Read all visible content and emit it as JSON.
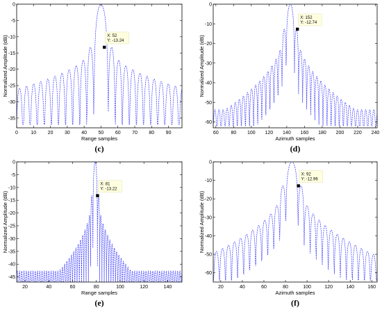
{
  "chart_data": [
    {
      "type": "line",
      "caption": "(c)",
      "xlabel": "Range samples",
      "ylabel": "Normalized Amplitude (dB)",
      "xlim": [
        0,
        98
      ],
      "ylim": [
        -38,
        0
      ],
      "xticks": [
        0,
        10,
        20,
        30,
        40,
        50,
        60,
        70,
        80,
        90
      ],
      "yticks": [
        0,
        -5,
        -10,
        -15,
        -20,
        -25,
        -30,
        -35
      ],
      "peak_x": 50,
      "lobe_period": 4.2,
      "sidelobe_peak_db": -13.24,
      "far_sidelobe_db": -27,
      "null_floor_db": -37,
      "grid": false,
      "color": "#3b3bff",
      "datatip": {
        "x": 52,
        "y": -13.24,
        "label_x": "X: 52",
        "label_y": "Y: -13.24"
      }
    },
    {
      "type": "line",
      "caption": "(d)",
      "xlabel": "Azimuth samples",
      "ylabel": "Normalized Amplitude (dB)",
      "xlim": [
        57,
        242
      ],
      "ylim": [
        -63,
        0
      ],
      "xticks": [
        60,
        80,
        100,
        120,
        140,
        160,
        180,
        200,
        220,
        240
      ],
      "yticks": [
        0,
        -10,
        -20,
        -30,
        -40,
        -50,
        -60
      ],
      "peak_x": 144,
      "lobe_period": 4.6,
      "sidelobe_peak_db": -12.74,
      "far_sidelobe_db": -50,
      "null_floor_db": -62,
      "grid": false,
      "color": "#3b3bff",
      "datatip": {
        "x": 152,
        "y": -12.74,
        "label_x": "X: 152",
        "label_y": "Y: -12.74"
      }
    },
    {
      "type": "line",
      "caption": "(e)",
      "xlabel": "Range samples",
      "ylabel": "Normalized Amplitude (dB)",
      "xlim": [
        13,
        152
      ],
      "ylim": [
        -47,
        0
      ],
      "xticks": [
        20,
        40,
        60,
        80,
        100,
        120,
        140
      ],
      "yticks": [
        0,
        -5,
        -10,
        -15,
        -20,
        -25,
        -30,
        -35,
        -40,
        -45
      ],
      "peak_x": 79,
      "lobe_period": 1.9,
      "sidelobe_peak_db": -13.22,
      "far_sidelobe_db": -40,
      "null_floor_db": -47,
      "grid": false,
      "color": "#3b3bff",
      "datatip": {
        "x": 81,
        "y": -13.22,
        "label_x": "X: 81",
        "label_y": "Y: -13.22"
      }
    },
    {
      "type": "line",
      "caption": "(f)",
      "xlabel": "Azimuth samples",
      "ylabel": "Normalized Amplitude (dB)",
      "xlim": [
        13,
        165
      ],
      "ylim": [
        -65,
        0
      ],
      "xticks": [
        20,
        40,
        60,
        80,
        100,
        120,
        140,
        160
      ],
      "yticks": [
        0,
        -10,
        -20,
        -30,
        -40,
        -50,
        -60
      ],
      "peak_x": 86,
      "lobe_period": 5.6,
      "sidelobe_peak_db": -12.96,
      "far_sidelobe_db": -50,
      "null_floor_db": -64,
      "grid": false,
      "color": "#3b3bff",
      "datatip": {
        "x": 92,
        "y": -12.96,
        "label_x": "X: 92",
        "label_y": "Y: -12.96"
      }
    }
  ]
}
